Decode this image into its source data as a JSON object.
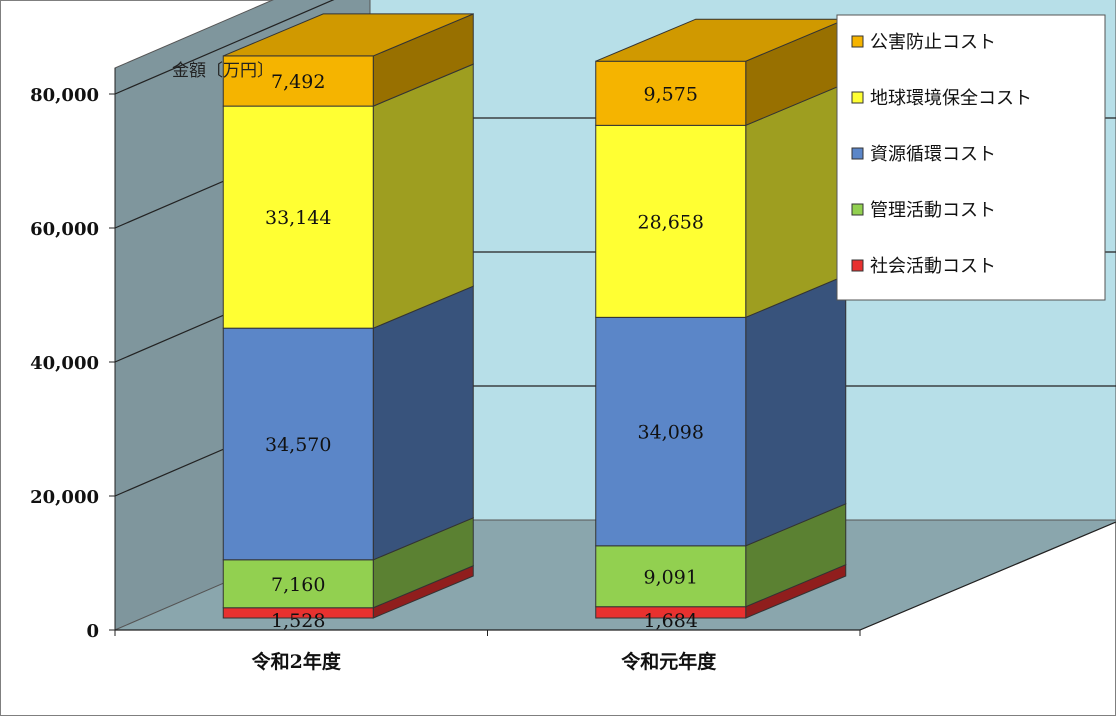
{
  "chart_data": {
    "type": "bar",
    "stacked": true,
    "three_d": true,
    "ylabel": "金額〔万円〕",
    "ylim": [
      0,
      80000
    ],
    "yticks": [
      0,
      20000,
      40000,
      60000,
      80000
    ],
    "ytick_labels": [
      "0",
      "20,000",
      "40,000",
      "60,000",
      "80,000"
    ],
    "categories": [
      "令和2年度",
      "令和元年度"
    ],
    "series": [
      {
        "name": "社会活動コスト",
        "color": "#e8312f",
        "values": [
          1528,
          1684
        ],
        "labels": [
          "1,528",
          "1,684"
        ]
      },
      {
        "name": "管理活動コスト",
        "color": "#92d050",
        "values": [
          7160,
          9091
        ],
        "labels": [
          "7,160",
          "9,091"
        ]
      },
      {
        "name": "資源循環コスト",
        "color": "#5b86c8",
        "values": [
          34570,
          34098
        ],
        "labels": [
          "34,570",
          "34,098"
        ]
      },
      {
        "name": "地球環境保全コスト",
        "color": "#ffff33",
        "values": [
          33144,
          28658
        ],
        "labels": [
          "33,144",
          "28,658"
        ]
      },
      {
        "name": "公害防止コスト",
        "color": "#f5b400",
        "values": [
          7492,
          9575
        ],
        "labels": [
          "7,492",
          "9,575"
        ]
      }
    ],
    "legend_order": [
      "公害防止コスト",
      "地球環境保全コスト",
      "資源循環コスト",
      "管理活動コスト",
      "社会活動コスト"
    ],
    "legend_position": "top-right",
    "grid": true,
    "colors": {
      "back_wall": "#b7dfe8",
      "side_wall": "#7f969d",
      "floor": "#8aa6ad"
    }
  }
}
